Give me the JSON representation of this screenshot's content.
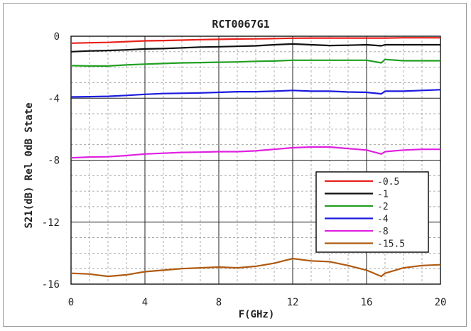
{
  "chart_data": {
    "type": "line",
    "title": "RCT0067G1",
    "xlabel": "F(GHz)",
    "ylabel": "S21(dB) Rel 0dB State",
    "xlim": [
      0,
      20
    ],
    "ylim": [
      -16,
      0
    ],
    "xticks": [
      "0",
      "4",
      "8",
      "12",
      "16",
      "20"
    ],
    "yticks": [
      "0",
      "-4",
      "-8",
      "-12",
      "-16"
    ],
    "grid": true,
    "legend_position": "bottom-right",
    "series": [
      {
        "name": "-0.5",
        "color": "#e8201a",
        "x": [
          0,
          1,
          2,
          3,
          4,
          5,
          6,
          7,
          8,
          9,
          10,
          11,
          12,
          13,
          14,
          15,
          16,
          17,
          18,
          19,
          20
        ],
        "y": [
          -0.45,
          -0.42,
          -0.4,
          -0.35,
          -0.3,
          -0.28,
          -0.25,
          -0.22,
          -0.2,
          -0.18,
          -0.17,
          -0.15,
          -0.13,
          -0.12,
          -0.12,
          -0.12,
          -0.12,
          -0.12,
          -0.1,
          -0.1,
          -0.1
        ]
      },
      {
        "name": "-1",
        "color": "#111111",
        "x": [
          0,
          1,
          2,
          3,
          4,
          5,
          6,
          7,
          8,
          9,
          10,
          11,
          12,
          13,
          14,
          15,
          16,
          16.8,
          17,
          18,
          19,
          20
        ],
        "y": [
          -1.0,
          -0.95,
          -0.92,
          -0.88,
          -0.82,
          -0.8,
          -0.75,
          -0.7,
          -0.68,
          -0.65,
          -0.62,
          -0.55,
          -0.5,
          -0.55,
          -0.6,
          -0.58,
          -0.55,
          -0.62,
          -0.55,
          -0.55,
          -0.55,
          -0.55
        ]
      },
      {
        "name": "-2",
        "color": "#22a022",
        "x": [
          0,
          1,
          2,
          3,
          4,
          5,
          6,
          7,
          8,
          9,
          10,
          11,
          12,
          13,
          14,
          15,
          16,
          16.8,
          17,
          18,
          19,
          20
        ],
        "y": [
          -1.9,
          -1.92,
          -1.92,
          -1.85,
          -1.8,
          -1.76,
          -1.72,
          -1.7,
          -1.68,
          -1.66,
          -1.62,
          -1.6,
          -1.55,
          -1.55,
          -1.55,
          -1.55,
          -1.55,
          -1.72,
          -1.5,
          -1.58,
          -1.58,
          -1.58
        ]
      },
      {
        "name": "-4",
        "color": "#1a1ae0",
        "x": [
          0,
          1,
          2,
          3,
          4,
          5,
          6,
          7,
          8,
          9,
          10,
          11,
          12,
          13,
          14,
          15,
          16,
          16.8,
          17,
          18,
          19,
          20
        ],
        "y": [
          -3.92,
          -3.9,
          -3.88,
          -3.82,
          -3.75,
          -3.7,
          -3.68,
          -3.66,
          -3.62,
          -3.58,
          -3.58,
          -3.55,
          -3.5,
          -3.55,
          -3.55,
          -3.6,
          -3.62,
          -3.72,
          -3.55,
          -3.55,
          -3.5,
          -3.45
        ]
      },
      {
        "name": "-8",
        "color": "#e020e0",
        "x": [
          0,
          1,
          2,
          3,
          4,
          5,
          6,
          7,
          8,
          9,
          10,
          11,
          12,
          13,
          14,
          15,
          16,
          16.8,
          17,
          18,
          19,
          20
        ],
        "y": [
          -7.85,
          -7.8,
          -7.78,
          -7.7,
          -7.6,
          -7.55,
          -7.5,
          -7.48,
          -7.45,
          -7.45,
          -7.4,
          -7.3,
          -7.2,
          -7.15,
          -7.15,
          -7.25,
          -7.35,
          -7.6,
          -7.45,
          -7.35,
          -7.3,
          -7.3
        ]
      },
      {
        "name": "-15.5",
        "color": "#b05a10",
        "x": [
          0,
          1,
          2,
          3,
          4,
          5,
          6,
          7,
          8,
          9,
          10,
          11,
          12,
          13,
          14,
          15,
          16,
          16.8,
          17,
          18,
          19,
          20
        ],
        "y": [
          -15.3,
          -15.35,
          -15.5,
          -15.4,
          -15.2,
          -15.1,
          -15.0,
          -14.95,
          -14.9,
          -14.95,
          -14.85,
          -14.65,
          -14.35,
          -14.5,
          -14.55,
          -14.8,
          -15.1,
          -15.5,
          -15.3,
          -14.95,
          -14.8,
          -14.75
        ]
      }
    ]
  }
}
